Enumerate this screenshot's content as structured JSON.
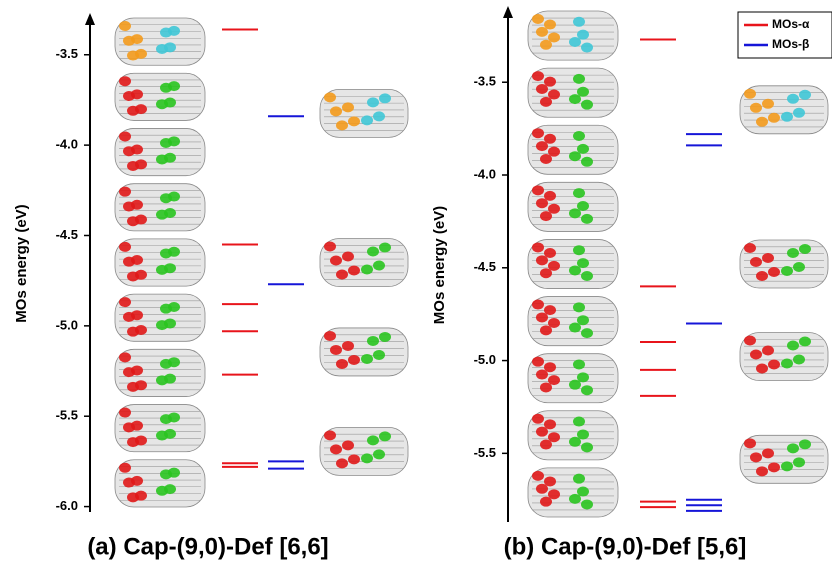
{
  "chart_data": [
    {
      "type": "level",
      "title": "(a) Cap-(9,0)-Def [6,6]",
      "ylabel": "MOs energy (eV)",
      "ylim": [
        -6.03,
        -3.28
      ],
      "yticks": [
        -3.5,
        {
          "value": -4,
          "label": "-4.0"
        },
        -4.5,
        {
          "value": -5,
          "label": "-5.0"
        },
        -5.5,
        {
          "value": -6,
          "label": "-6.0"
        }
      ],
      "series": [
        {
          "name": "MOs-α",
          "color": "#e8141b",
          "values": [
            -3.36,
            -4.55,
            -4.88,
            -5.03,
            -5.27,
            -5.76,
            -5.78
          ]
        },
        {
          "name": "MOs-β",
          "color": "#1515d8",
          "values": [
            -3.84,
            -4.77,
            -5.75,
            -5.79
          ]
        }
      ]
    },
    {
      "type": "level",
      "title": "(b) Cap-(9,0)-Def [5,6]",
      "ylabel": "MOs energy (eV)",
      "ylim": [
        -5.87,
        -3.1
      ],
      "yticks": [
        -3.5,
        {
          "value": -4,
          "label": "-4.0"
        },
        -4.5,
        {
          "value": -5,
          "label": "-5.0"
        },
        -5.5
      ],
      "legend": "upper right",
      "series": [
        {
          "name": "MOs-α",
          "color": "#e8141b",
          "values": [
            -3.27,
            -4.6,
            -4.9,
            -5.05,
            -5.19,
            -5.76,
            -5.79
          ]
        },
        {
          "name": "MOs-β",
          "color": "#1515d8",
          "values": [
            -3.78,
            -3.84,
            -4.8,
            -5.75,
            -5.78,
            -5.81
          ]
        }
      ]
    }
  ]
}
